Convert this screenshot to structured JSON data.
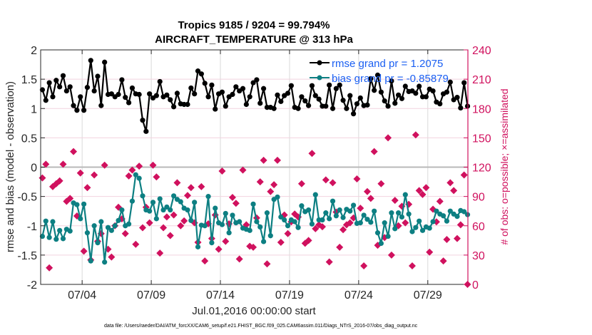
{
  "chart_data": {
    "type": "line",
    "title": "Tropics 9185 / 9204 = 99.794%",
    "subtitle": "AIRCRAFT_TEMPERATURE @ 313 hPa",
    "xlabel": "Jul.01,2016 00:00:00 start",
    "ylabel": "rmse and bias (model - observation)",
    "ylabel_right": "# of obs: o=possible; ×=assimilated",
    "footer": "data file: /Users/raeder/DAI/ATM_forcXX/CAM6_setup/f.e21.FHIST_BGC.f09_025.CAM6assim.011/Diags_NTrS_2016-07/obs_diag_output.nc",
    "x_unit": "days since Jul.01,2016 00:00:00",
    "xlim": [
      0,
      30.9
    ],
    "ylim": [
      -2,
      2
    ],
    "ylim_right": [
      0,
      240
    ],
    "xticks": [
      3,
      8,
      13,
      18,
      23,
      28
    ],
    "xtick_labels": [
      "07/04",
      "07/09",
      "07/14",
      "07/19",
      "07/24",
      "07/29"
    ],
    "yticks": [
      -2,
      -1.5,
      -1,
      -0.5,
      0,
      0.5,
      1,
      1.5,
      2
    ],
    "ytick_labels": [
      "-2",
      "-1.5",
      "-1",
      "-0.5",
      "0",
      "0.5",
      "1",
      "1.5",
      "2"
    ],
    "yticks_right": [
      0,
      30,
      60,
      90,
      120,
      150,
      180,
      210,
      240
    ],
    "grid": true,
    "zero_line": 0,
    "legend_position": "top-right",
    "legend": [
      {
        "name": "rmse grand pr = 1.2075",
        "color": "#000000"
      },
      {
        "name": "bias grand pr = -0.85879",
        "color": "#0d7f82"
      }
    ],
    "x_start": 0.125,
    "x_step": 0.25,
    "series": [
      {
        "name": "rmse",
        "color": "#000000",
        "axis": "left",
        "values": [
          1.32,
          1.14,
          1.44,
          1.2,
          1.48,
          1.37,
          1.56,
          1.3,
          1.37,
          1.05,
          0.97,
          1.2,
          0.97,
          1.36,
          1.82,
          1.3,
          1.55,
          1.05,
          1.79,
          1.24,
          1.25,
          1.2,
          1.24,
          1.49,
          1.19,
          1.1,
          1.35,
          1.25,
          1.24,
          0.8,
          0.61,
          1.25,
          1.18,
          1.22,
          1.46,
          1.2,
          1.23,
          1.15,
          1.03,
          1.26,
          1.08,
          1.07,
          1.07,
          1.35,
          1.25,
          1.64,
          1.59,
          1.43,
          1.2,
          1.4,
          0.99,
          1.25,
          1.28,
          1.04,
          1.2,
          1.24,
          1.37,
          1.3,
          1.34,
          1.07,
          1.2,
          1.44,
          1.49,
          1.09,
          1.34,
          1.02,
          1.02,
          1.0,
          1.23,
          1.12,
          1.22,
          1.26,
          1.39,
          1.02,
          1.0,
          1.2,
          1.13,
          1.05,
          1.39,
          1.22,
          1.16,
          1.04,
          1.04,
          1.4,
          1.0,
          1.34,
          1.4,
          1.14,
          1.0,
          1.22,
          0.91,
          1.08,
          1.18,
          1.05,
          1.06,
          1.51,
          1.31,
          1.57,
          1.28,
          1.13,
          1.04,
          1.47,
          1.09,
          1.23,
          1.17,
          1.38,
          1.29,
          1.3,
          1.26,
          1.38,
          1.2,
          1.2,
          1.33,
          1.3,
          1.11,
          1.08,
          1.25,
          1.28,
          1.45,
          1.15,
          1.19,
          1.01,
          1.44,
          1.04
        ]
      },
      {
        "name": "bias",
        "color": "#0d7f82",
        "axis": "left",
        "values": [
          -1.18,
          -0.92,
          -1.2,
          -0.93,
          -1.23,
          -1.08,
          -1.22,
          -1.06,
          -1.09,
          -0.61,
          -0.64,
          -0.88,
          -0.63,
          -1.12,
          -1.6,
          -1.0,
          -1.29,
          -0.93,
          -1.62,
          -1.03,
          -1.08,
          -1.0,
          -0.91,
          -0.73,
          -1.0,
          -0.97,
          -0.58,
          -0.13,
          -0.19,
          -0.49,
          -0.73,
          -0.75,
          -0.6,
          -0.88,
          -0.54,
          -0.73,
          -0.68,
          -0.73,
          -0.49,
          -0.55,
          -0.59,
          -0.7,
          -0.73,
          -0.91,
          -0.6,
          -1.36,
          -0.99,
          -1.0,
          -0.5,
          -1.29,
          -0.7,
          -0.95,
          -0.98,
          -0.79,
          -1.12,
          -0.82,
          -0.95,
          -0.93,
          -1.04,
          -1.06,
          -1.08,
          -0.63,
          -0.93,
          -1.02,
          -1.27,
          -0.78,
          -1.17,
          -0.55,
          -0.51,
          -0.85,
          -0.9,
          -1.0,
          -0.9,
          -0.93,
          -1.03,
          -0.66,
          -0.76,
          -0.73,
          -0.97,
          -0.47,
          -0.9,
          -0.9,
          -0.78,
          -0.88,
          -0.58,
          -0.83,
          -0.73,
          -0.86,
          -0.72,
          -0.75,
          -0.65,
          -0.96,
          -0.95,
          -0.82,
          -0.89,
          -0.94,
          -0.75,
          -1.12,
          -1.3,
          -0.95,
          -1.18,
          -0.78,
          -1.05,
          -0.78,
          -0.85,
          -0.47,
          -0.8,
          -1.1,
          -1.03,
          -0.92,
          -1.08,
          -1.02,
          -1.04,
          -0.93,
          -0.75,
          -0.8,
          -0.83,
          -0.92,
          -0.75,
          -0.8,
          -0.84,
          -0.74,
          -0.76,
          -0.81
        ]
      },
      {
        "name": "obs possible/assimilated",
        "color": "#d0115e",
        "axis": "right",
        "marker": "diamond",
        "values": [
          109,
          123,
          17,
          100,
          103,
          106,
          123,
          85,
          88,
          136,
          70,
          114,
          34,
          99,
          25,
          112,
          44,
          52,
          122,
          36,
          28,
          60,
          79,
          67,
          52,
          111,
          117,
          41,
          121,
          58,
          79,
          63,
          122,
          110,
          32,
          58,
          69,
          50,
          71,
          104,
          60,
          65,
          91,
          99,
          63,
          43,
          100,
          24,
          62,
          47,
          71,
          36,
          116,
          44,
          62,
          89,
          83,
          26,
          117,
          61,
          39,
          38,
          68,
          105,
          127,
          21,
          95,
          102,
          127,
          43,
          71,
          52,
          64,
          72,
          69,
          103,
          42,
          45,
          134,
          57,
          61,
          59,
          107,
          23,
          104,
          74,
          38,
          56,
          61,
          63,
          68,
          108,
          78,
          19,
          95,
          88,
          136,
          40,
          103,
          48,
          150,
          30,
          86,
          60,
          80,
          63,
          82,
          19,
          153,
          96,
          92,
          99,
          33,
          77,
          64,
          85,
          24,
          46,
          104,
          96,
          47,
          61,
          112,
          0
        ]
      }
    ]
  }
}
